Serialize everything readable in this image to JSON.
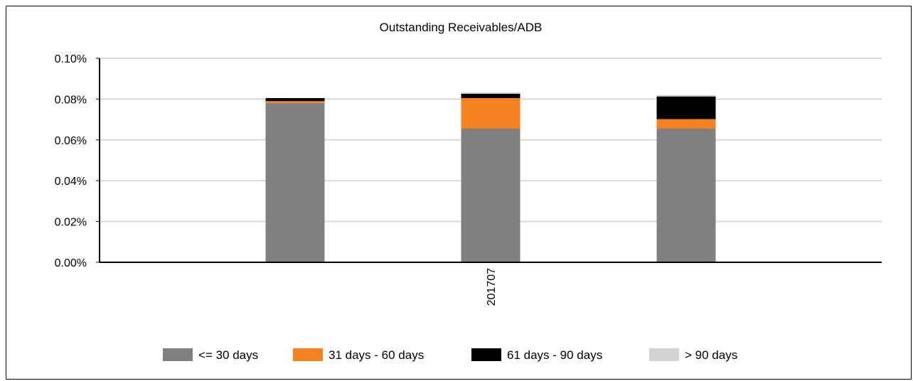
{
  "chart_data": {
    "type": "bar",
    "stacked": true,
    "title": "Outstanding Receivables/ADB",
    "xlabel": "",
    "ylabel": "",
    "categories": [
      "",
      "201707",
      ""
    ],
    "y_tick_labels": [
      "0.00%",
      "0.02%",
      "0.04%",
      "0.06%",
      "0.08%",
      "0.10%"
    ],
    "y_ticks": [
      0,
      0.02,
      0.04,
      0.06,
      0.08,
      0.1
    ],
    "ylim": [
      0,
      0.1
    ],
    "grid": true,
    "legend_position": "bottom",
    "series": [
      {
        "name": "<= 30 days",
        "color": "#808080",
        "values": [
          0.0781,
          0.0655,
          0.0655
        ]
      },
      {
        "name": "31 days - 60 days",
        "color": "#f58220",
        "values": [
          0.0009,
          0.015,
          0.0047
        ]
      },
      {
        "name": "61 days - 90 days",
        "color": "#000000",
        "values": [
          0.0015,
          0.0021,
          0.0111
        ]
      },
      {
        "name": "> 90 days",
        "color": "#d3d3d3",
        "values": [
          0.0,
          0.0007,
          0.0007
        ]
      }
    ]
  }
}
